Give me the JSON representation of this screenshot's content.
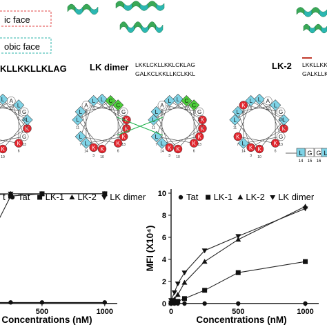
{
  "legend_top": {
    "hydrophilic_face": "ic face",
    "hydrophobic_face": "obic face"
  },
  "peptides": {
    "lk1_label": "KLLKKLLKLAG",
    "lk_dimer_label": "LK dimer",
    "lk_dimer_seq_top": "LKKLCKLLKKLCKLAG",
    "lk_dimer_seq_bottom": "GALKCLKKLLKCLKKL",
    "lk2_label": "LK-2",
    "lk2_seq_top": "LKKLLKK",
    "lk2_seq_bottom": "GALKLLK"
  },
  "wheel_tail": [
    "L",
    "G",
    "G",
    "L"
  ],
  "wheel_tail_numbers": [
    "14",
    "15",
    "16"
  ],
  "colors": {
    "hydrophobic": "#7fd3e6",
    "hydrophilic": "#e2262e",
    "cys": "#4ccf3a",
    "neutral": "#ffffff",
    "helix_green": "#3aa856",
    "helix_teal": "#2bb7b3",
    "cross_line": "#1db24b",
    "accent_red": "#c0392b"
  },
  "chart_data": [
    {
      "type": "line",
      "xlabel": "Concentrations (nM)",
      "ylabel": "",
      "xlim": [
        0,
        1100
      ],
      "ylim": [
        0,
        100
      ],
      "xticks": [
        "500",
        "1000"
      ],
      "legend": [
        "Tat",
        "LK-1",
        "LK-2",
        "LK dimer"
      ],
      "legend_placement": "top",
      "legend_prefix": "t",
      "x": [
        0,
        25,
        50,
        100,
        250,
        500,
        1000
      ],
      "series": [
        {
          "name": "Tat",
          "values": [
            1,
            1,
            1,
            1,
            1,
            1,
            1
          ]
        },
        {
          "name": "LK-1",
          "values": [
            30,
            36,
            45,
            62,
            95,
            97,
            97
          ]
        },
        {
          "name": "LK-2",
          "values": [
            90,
            88,
            92,
            96,
            97,
            97,
            97
          ]
        },
        {
          "name": "LK dimer",
          "values": [
            97,
            97,
            97,
            97,
            97,
            97,
            97
          ]
        }
      ]
    },
    {
      "type": "line",
      "xlabel": "Concentrations (nM)",
      "ylabel": "MFI (X10⁴)",
      "xlim": [
        0,
        1100
      ],
      "ylim": [
        0,
        10
      ],
      "yticks": [
        "0",
        "2",
        "4",
        "6",
        "8",
        "10"
      ],
      "xticks": [
        "0",
        "500",
        "1000"
      ],
      "legend": [
        "Tat",
        "LK-1",
        "LK-2",
        "LK dimer"
      ],
      "legend_placement": "top",
      "x": [
        0,
        25,
        50,
        100,
        250,
        500,
        1000
      ],
      "series": [
        {
          "name": "Tat",
          "values": [
            0.0,
            0.0,
            0.0,
            0.0,
            0.0,
            0.0,
            0.0
          ]
        },
        {
          "name": "LK-1",
          "values": [
            0.05,
            0.1,
            0.2,
            0.45,
            1.2,
            2.8,
            3.8
          ]
        },
        {
          "name": "LK-2",
          "values": [
            0.15,
            0.4,
            0.8,
            1.9,
            3.8,
            5.8,
            8.8
          ]
        },
        {
          "name": "LK dimer",
          "values": [
            0.3,
            1.0,
            1.8,
            2.8,
            4.8,
            6.1,
            8.6
          ]
        }
      ]
    }
  ]
}
